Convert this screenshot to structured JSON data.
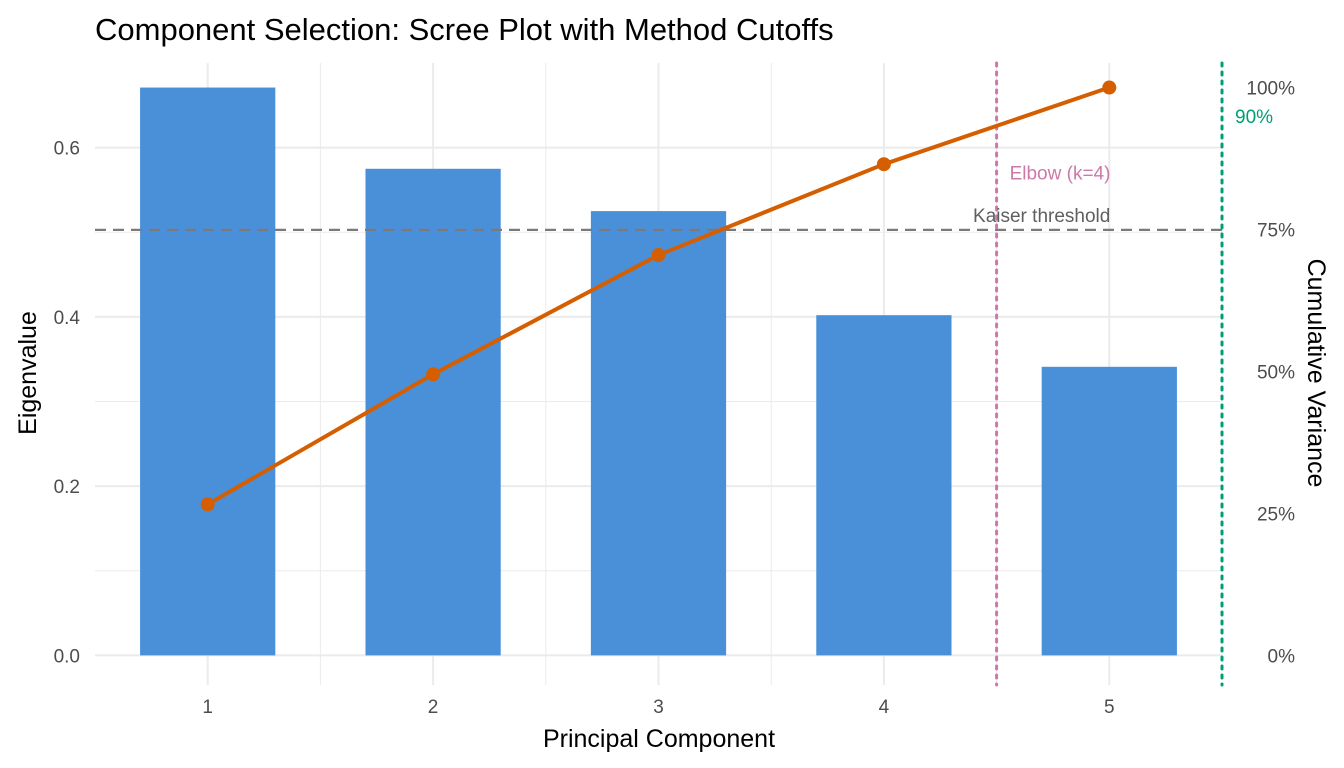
{
  "chart_data": {
    "type": "bar",
    "title": "Component Selection: Scree Plot with Method Cutoffs",
    "xlabel": "Principal Component",
    "ylabel": "Eigenvalue",
    "y2label": "Cumulative Variance",
    "categories": [
      "1",
      "2",
      "3",
      "4",
      "5"
    ],
    "ylim": [
      -0.035,
      0.7
    ],
    "y_ticks": [
      0.0,
      0.2,
      0.4,
      0.6
    ],
    "y_tick_labels": [
      "0.0",
      "0.2",
      "0.4",
      "0.6"
    ],
    "y2_ticks": [
      0,
      25,
      50,
      75,
      100
    ],
    "y2_tick_labels": [
      "0%",
      "25%",
      "50%",
      "75%",
      "100%"
    ],
    "grid": true,
    "series": [
      {
        "type": "bar",
        "axis": "left",
        "values": [
          0.671,
          0.575,
          0.525,
          0.402,
          0.341
        ],
        "color": "#4A90D9"
      },
      {
        "type": "line",
        "axis": "right",
        "values": [
          26.6,
          49.5,
          70.5,
          86.5,
          100.0
        ],
        "color": "#D55E00"
      }
    ],
    "reference_lines": [
      {
        "orientation": "horizontal",
        "axis": "left",
        "value": 0.5028,
        "label": "Kaiser threshold",
        "color": "#7a7a7a",
        "style": "dashed"
      },
      {
        "orientation": "vertical",
        "x": 4.5,
        "label": "Elbow (k=4)",
        "color": "#CC79A7",
        "style": "dotted"
      },
      {
        "orientation": "vertical",
        "x": 5.5,
        "label": "90%",
        "color": "#009E73",
        "style": "dotted"
      }
    ]
  }
}
